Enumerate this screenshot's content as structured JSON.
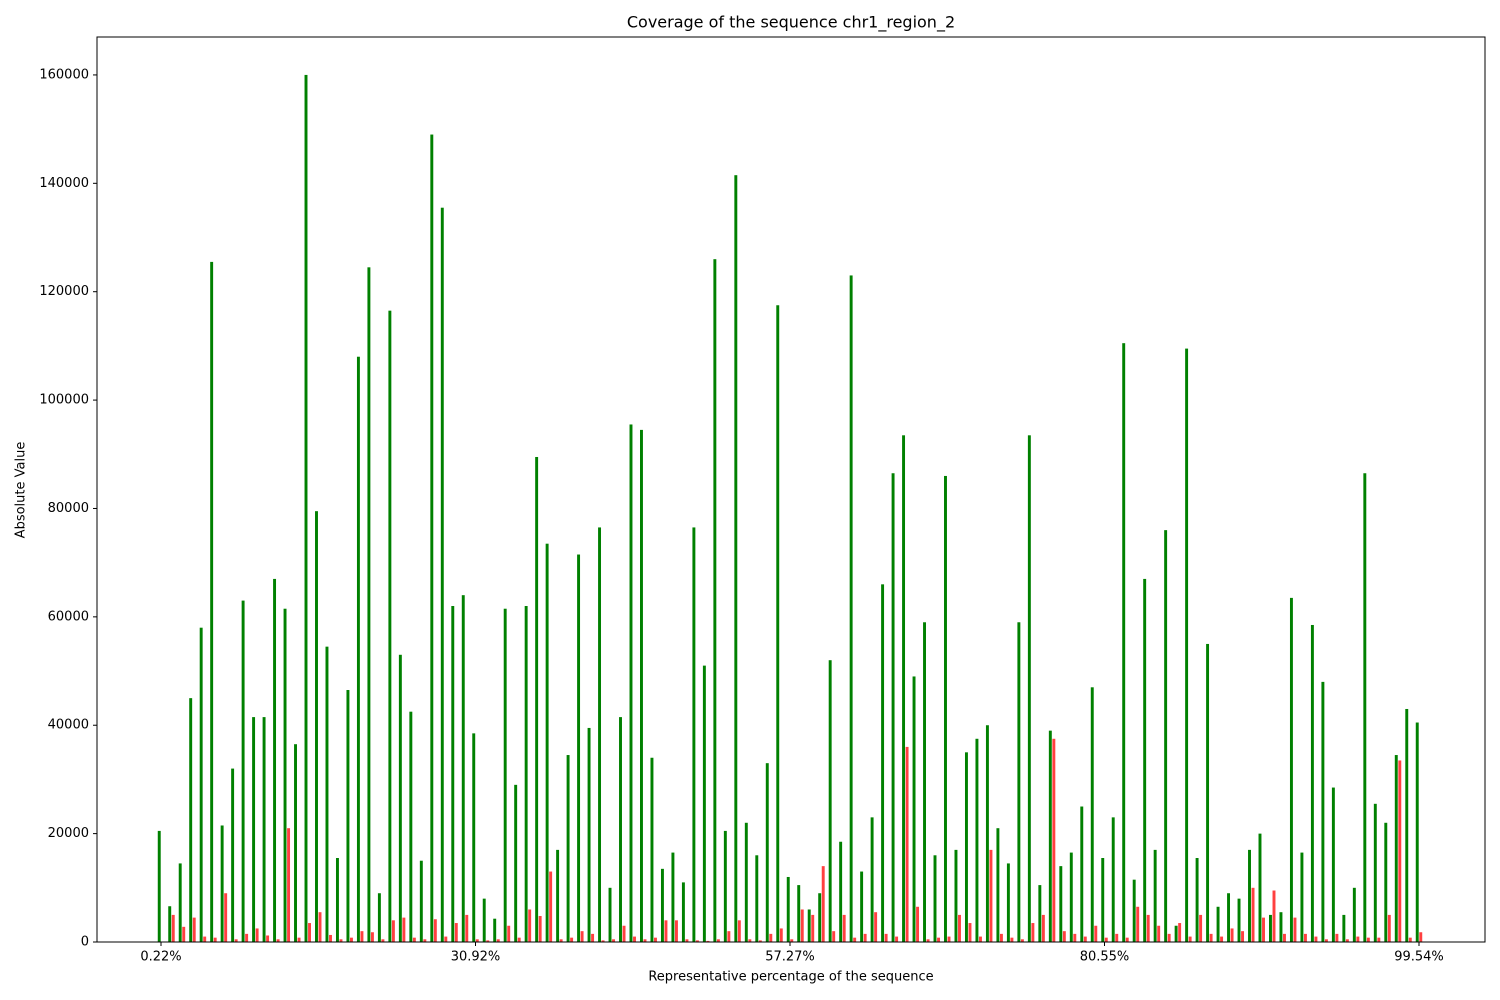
{
  "chart_data": {
    "type": "bar",
    "title": "Coverage of the sequence chr1_region_2",
    "x_label": "Representative percentage of the sequence",
    "y_label": "Absolute Value",
    "categories": [
      "0.22%",
      null,
      null,
      null,
      null,
      null,
      null,
      null,
      null,
      null,
      null,
      null,
      null,
      null,
      null,
      null,
      null,
      null,
      null,
      null,
      null,
      null,
      null,
      null,
      null,
      null,
      null,
      null,
      null,
      null,
      "30.92%",
      null,
      null,
      null,
      null,
      null,
      null,
      null,
      null,
      null,
      null,
      null,
      null,
      null,
      null,
      null,
      null,
      null,
      null,
      null,
      null,
      null,
      null,
      null,
      null,
      null,
      null,
      null,
      null,
      null,
      "57.27%",
      null,
      null,
      null,
      null,
      null,
      null,
      null,
      null,
      null,
      null,
      null,
      null,
      null,
      null,
      null,
      null,
      null,
      null,
      null,
      null,
      null,
      null,
      null,
      null,
      null,
      null,
      null,
      null,
      null,
      "80.55%",
      null,
      null,
      null,
      null,
      null,
      null,
      null,
      null,
      null,
      null,
      null,
      null,
      null,
      null,
      null,
      null,
      null,
      null,
      null,
      null,
      null,
      null,
      null,
      null,
      null,
      null,
      null,
      null,
      null,
      "99.54%"
    ],
    "series": [
      {
        "color": "#008000",
        "values": [
          20500,
          6600,
          14500,
          45000,
          58000,
          125500,
          21500,
          32000,
          63000,
          41500,
          41500,
          67000,
          61500,
          36500,
          160000,
          79500,
          54500,
          15500,
          46500,
          108000,
          124500,
          9000,
          116500,
          53000,
          42500,
          15000,
          149000,
          135500,
          62000,
          64000,
          38500,
          8000,
          4300,
          61500,
          29000,
          62000,
          89500,
          73500,
          17000,
          34500,
          71500,
          39500,
          76500,
          10000,
          41500,
          95500,
          94500,
          34000,
          13500,
          16500,
          11000,
          76500,
          51000,
          126000,
          20500,
          141500,
          22000,
          16000,
          33000,
          117500,
          12000,
          10500,
          6000,
          9000,
          52000,
          18500,
          123000,
          13000,
          23000,
          66000,
          86500,
          93500,
          49000,
          59000,
          16000,
          86000,
          17000,
          35000,
          37500,
          40000,
          21000,
          14500,
          59000,
          93500,
          10500,
          39000,
          14000,
          16500,
          25000,
          47000,
          15500,
          23000,
          110500,
          11500,
          67000,
          17000,
          76000,
          3000,
          109500,
          15500,
          55000,
          6500,
          9000,
          8000,
          17000,
          20000,
          5000,
          5500,
          63500,
          16500,
          58500,
          48000,
          28500,
          5000,
          10000,
          86500,
          25500,
          22000,
          34500,
          43000,
          40500
        ]
      },
      {
        "color": "#ff0000",
        "values": [
          0,
          5000,
          2800,
          4500,
          1000,
          800,
          9000,
          500,
          1500,
          2500,
          1200,
          500,
          21000,
          800,
          3500,
          5500,
          1300,
          500,
          800,
          2000,
          1800,
          500,
          4000,
          4500,
          800,
          500,
          4200,
          1000,
          3500,
          5000,
          500,
          300,
          500,
          3000,
          800,
          6000,
          4800,
          13000,
          500,
          800,
          2000,
          1500,
          300,
          500,
          3000,
          1000,
          500,
          800,
          4000,
          4000,
          500,
          300,
          200,
          500,
          2000,
          4000,
          500,
          300,
          1500,
          2500,
          500,
          6000,
          5000,
          14000,
          2000,
          5000,
          800,
          1500,
          5500,
          1500,
          1000,
          36000,
          6500,
          500,
          800,
          1000,
          5000,
          3500,
          1000,
          17000,
          1500,
          800,
          500,
          3500,
          5000,
          37500,
          2000,
          1500,
          1000,
          3000,
          800,
          1500,
          800,
          6500,
          5000,
          3000,
          1500,
          3500,
          1000,
          5000,
          1500,
          1000,
          2500,
          2000,
          10000,
          4500,
          9500,
          1500,
          4500,
          1500,
          1000,
          500,
          1500,
          500,
          1000,
          800,
          800,
          5000,
          33500,
          800,
          1800
        ]
      }
    ],
    "ylim": [
      0,
      167000
    ],
    "yticks": [
      0,
      20000,
      40000,
      60000,
      80000,
      100000,
      120000,
      140000,
      160000
    ],
    "grid": false
  }
}
